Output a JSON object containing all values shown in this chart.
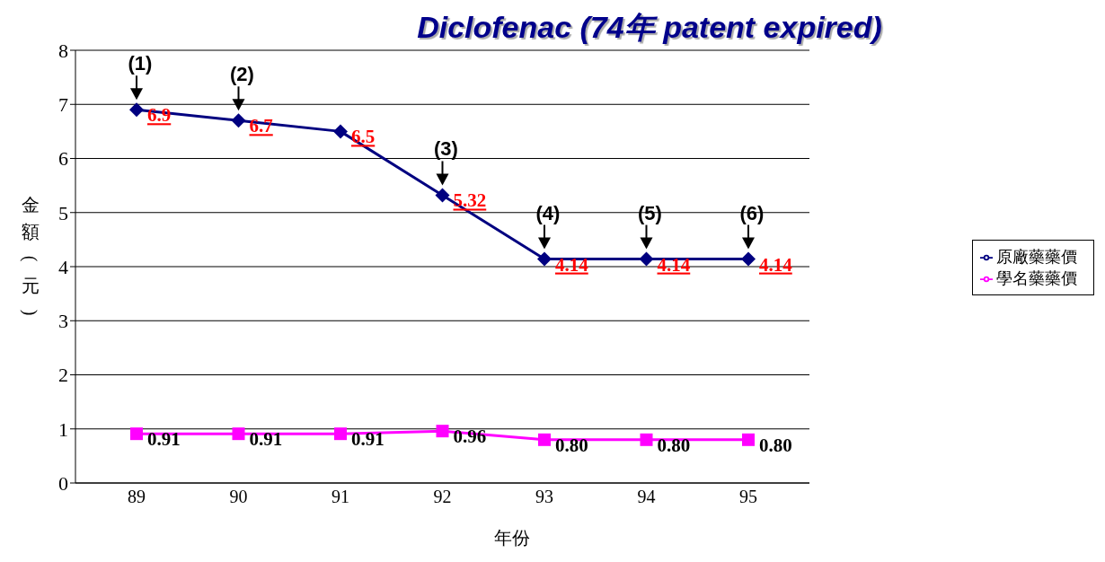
{
  "chart_data": {
    "type": "line",
    "title": "Diclofenac (74年 patent expired)",
    "xlabel": "年份",
    "ylabel": "金額(元)",
    "categories": [
      "89",
      "90",
      "91",
      "92",
      "93",
      "94",
      "95"
    ],
    "series": [
      {
        "name": "原廠藥藥價",
        "color": "#000080",
        "marker": "diamond",
        "values": [
          6.9,
          6.7,
          6.5,
          5.32,
          4.14,
          4.14,
          4.14
        ],
        "value_labels": [
          "6.9",
          "6.7",
          "6.5",
          "5.32",
          "4.14",
          "4.14",
          "4.14"
        ]
      },
      {
        "name": "學名藥藥價",
        "color": "#ff00ff",
        "marker": "square",
        "values": [
          0.91,
          0.91,
          0.91,
          0.96,
          0.8,
          0.8,
          0.8
        ],
        "value_labels": [
          "0.91",
          "0.91",
          "0.91",
          "0.96",
          "0.80",
          "0.80",
          "0.80"
        ]
      }
    ],
    "ylim": [
      0,
      8
    ],
    "yticks": [
      0,
      1,
      2,
      3,
      4,
      5,
      6,
      7,
      8
    ],
    "grid": "y",
    "legend": "right",
    "annotations": [
      {
        "text": "(1)",
        "x": "89",
        "y": 6.9
      },
      {
        "text": "(2)",
        "x": "90",
        "y": 6.7
      },
      {
        "text": "(3)",
        "x": "92",
        "y": 5.32
      },
      {
        "text": "(4)",
        "x": "93",
        "y": 4.14
      },
      {
        "text": "(5)",
        "x": "94",
        "y": 4.14
      },
      {
        "text": "(6)",
        "x": "95",
        "y": 4.14
      }
    ]
  }
}
